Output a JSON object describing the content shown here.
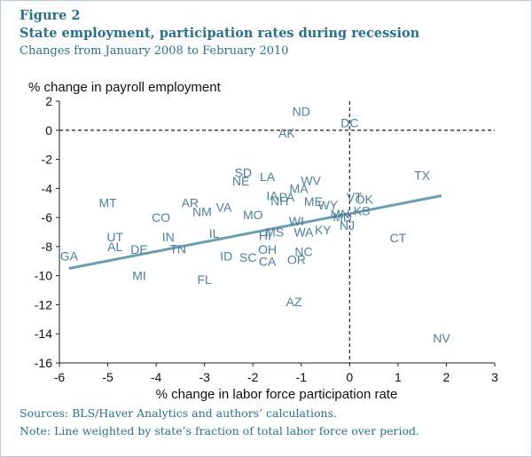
{
  "figure": {
    "label": "Figure 2",
    "title": "State employment, participation rates during recession",
    "subtitle": "Changes from January 2008 to February 2010",
    "sources": "Sources: BLS/Haver Analytics and authors’ calculations.",
    "note": "Note: Line weighted by state’s fraction of total labor force over period."
  },
  "colors": {
    "title": "#2b6f8c",
    "label_text": "#4f7f98",
    "trend_line": "#6a9db4",
    "axis_text": "#111111"
  },
  "chart_data": {
    "type": "scatter",
    "xlabel": "% change in labor force participation rate",
    "ylabel": "% change in payroll employment",
    "xlim": [
      -6,
      3
    ],
    "ylim": [
      -16,
      2
    ],
    "xticks": [
      -6,
      -5,
      -4,
      -3,
      -2,
      -1,
      0,
      1,
      2,
      3
    ],
    "yticks": [
      2,
      0,
      -2,
      -4,
      -6,
      -8,
      -10,
      -12,
      -14,
      -16
    ],
    "grid": false,
    "reference_lines": [
      {
        "axis": "y",
        "value": 0,
        "style": "dashed"
      },
      {
        "axis": "x",
        "value": 0,
        "style": "dashed"
      }
    ],
    "trend_line": {
      "x1": -5.8,
      "y1": -9.5,
      "x2": 1.9,
      "y2": -4.5
    },
    "points": [
      {
        "label": "ND",
        "x": -1.0,
        "y": 1.3
      },
      {
        "label": "DC",
        "x": 0.0,
        "y": 0.5
      },
      {
        "label": "AK",
        "x": -1.3,
        "y": -0.2
      },
      {
        "label": "TX",
        "x": 1.5,
        "y": -3.1
      },
      {
        "label": "SD",
        "x": -2.2,
        "y": -2.9
      },
      {
        "label": "NE",
        "x": -2.25,
        "y": -3.5
      },
      {
        "label": "LA",
        "x": -1.7,
        "y": -3.2
      },
      {
        "label": "MA",
        "x": -1.05,
        "y": -4.0
      },
      {
        "label": "WV",
        "x": -0.8,
        "y": -3.45
      },
      {
        "label": "MT",
        "x": -5.0,
        "y": -5.0
      },
      {
        "label": "AR",
        "x": -3.3,
        "y": -5.0
      },
      {
        "label": "NM",
        "x": -3.05,
        "y": -5.6
      },
      {
        "label": "VA",
        "x": -2.6,
        "y": -5.3
      },
      {
        "label": "IA",
        "x": -1.6,
        "y": -4.5
      },
      {
        "label": "NH",
        "x": -1.45,
        "y": -4.85
      },
      {
        "label": "PA",
        "x": -1.3,
        "y": -4.6
      },
      {
        "label": "ME",
        "x": -0.75,
        "y": -4.9
      },
      {
        "label": "WY",
        "x": -0.45,
        "y": -5.15
      },
      {
        "label": "VT",
        "x": 0.1,
        "y": -4.6
      },
      {
        "label": "OK",
        "x": 0.3,
        "y": -4.75
      },
      {
        "label": "KS",
        "x": 0.25,
        "y": -5.55
      },
      {
        "label": "MN",
        "x": -0.2,
        "y": -5.75
      },
      {
        "label": "CO",
        "x": -3.9,
        "y": -6.0
      },
      {
        "label": "MO",
        "x": -2.0,
        "y": -5.8
      },
      {
        "label": "WI",
        "x": -1.1,
        "y": -6.25
      },
      {
        "label": "MD",
        "x": -0.15,
        "y": -5.95
      },
      {
        "label": "NJ",
        "x": -0.05,
        "y": -6.55
      },
      {
        "label": "KY",
        "x": -0.55,
        "y": -6.85
      },
      {
        "label": "WA",
        "x": -0.95,
        "y": -7.0
      },
      {
        "label": "CT",
        "x": 1.0,
        "y": -7.4
      },
      {
        "label": "UT",
        "x": -4.85,
        "y": -7.35
      },
      {
        "label": "IN",
        "x": -3.75,
        "y": -7.35
      },
      {
        "label": "IL",
        "x": -2.8,
        "y": -7.1
      },
      {
        "label": "HI",
        "x": -1.75,
        "y": -7.25
      },
      {
        "label": "MS",
        "x": -1.55,
        "y": -7.0
      },
      {
        "label": "AL",
        "x": -4.85,
        "y": -8.0
      },
      {
        "label": "DE",
        "x": -4.35,
        "y": -8.2
      },
      {
        "label": "TN",
        "x": -3.55,
        "y": -8.15
      },
      {
        "label": "GA",
        "x": -5.8,
        "y": -8.65
      },
      {
        "label": "OH",
        "x": -1.7,
        "y": -8.2
      },
      {
        "label": "ID",
        "x": -2.55,
        "y": -8.65
      },
      {
        "label": "SC",
        "x": -2.1,
        "y": -8.75
      },
      {
        "label": "CA",
        "x": -1.7,
        "y": -9.0
      },
      {
        "label": "NC",
        "x": -0.95,
        "y": -8.35
      },
      {
        "label": "OR",
        "x": -1.1,
        "y": -8.9
      },
      {
        "label": "MI",
        "x": -4.35,
        "y": -10.0
      },
      {
        "label": "FL",
        "x": -3.0,
        "y": -10.25
      },
      {
        "label": "AZ",
        "x": -1.15,
        "y": -11.8
      },
      {
        "label": "NV",
        "x": 1.9,
        "y": -14.3
      }
    ]
  }
}
